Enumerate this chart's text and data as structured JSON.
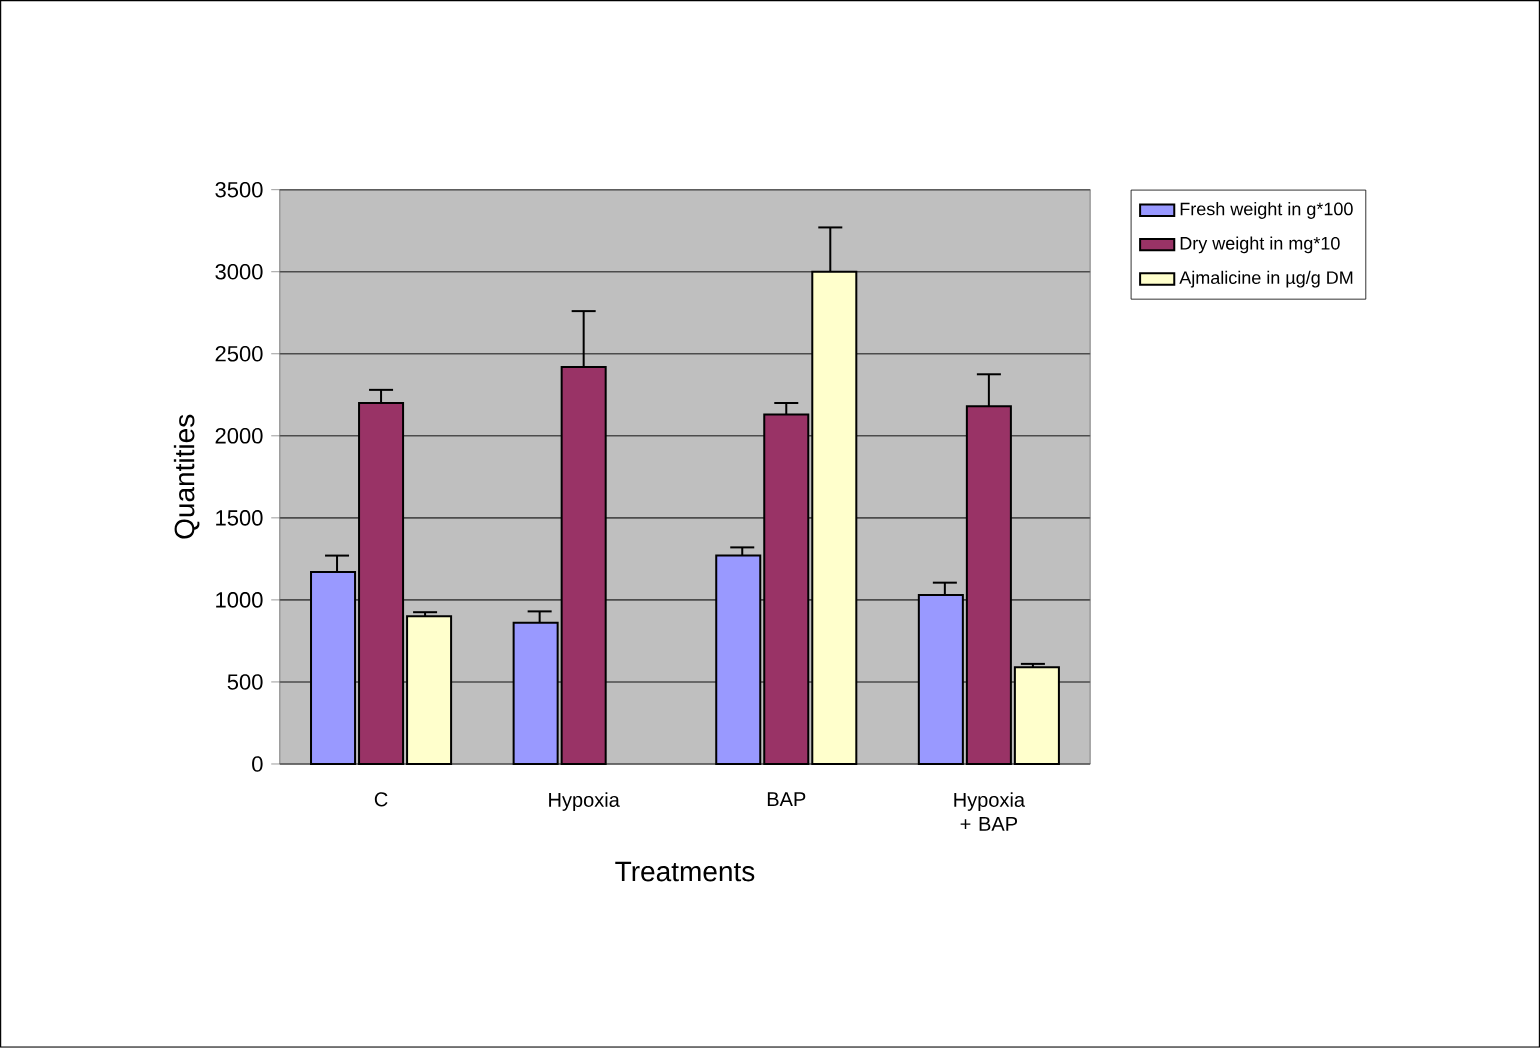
{
  "chart_data": {
    "type": "bar",
    "xlabel": "Treatments",
    "ylabel": "Quantities",
    "categories": [
      "C",
      "Hypoxia",
      "BAP",
      "Hypoxia + BAP"
    ],
    "series": [
      {
        "name": "Fresh weight in g*100",
        "color": "#9999ff",
        "values": [
          1170,
          860,
          1270,
          1030
        ],
        "errors": [
          [
            1170,
            1270
          ],
          [
            860,
            930
          ],
          [
            1270,
            1320
          ],
          [
            1030,
            1105
          ]
        ]
      },
      {
        "name": "Dry weight  in mg*10",
        "color": "#993366",
        "values": [
          2200,
          2420,
          2130,
          2180
        ],
        "errors": [
          [
            2200,
            2280
          ],
          [
            2420,
            2760
          ],
          [
            2130,
            2200
          ],
          [
            2180,
            2375
          ]
        ]
      },
      {
        "name": "Ajmalicine in µg/g DM",
        "color": "#ffffcc",
        "values": [
          900,
          null,
          3000,
          590
        ],
        "errors": [
          [
            900,
            925
          ],
          null,
          [
            3000,
            3270
          ],
          [
            590,
            610
          ]
        ]
      }
    ],
    "ylim": [
      0,
      3500
    ],
    "yticks": [
      0,
      500,
      1000,
      1500,
      2000,
      2500,
      3000,
      3500
    ],
    "grid": "y",
    "legend": "right"
  }
}
